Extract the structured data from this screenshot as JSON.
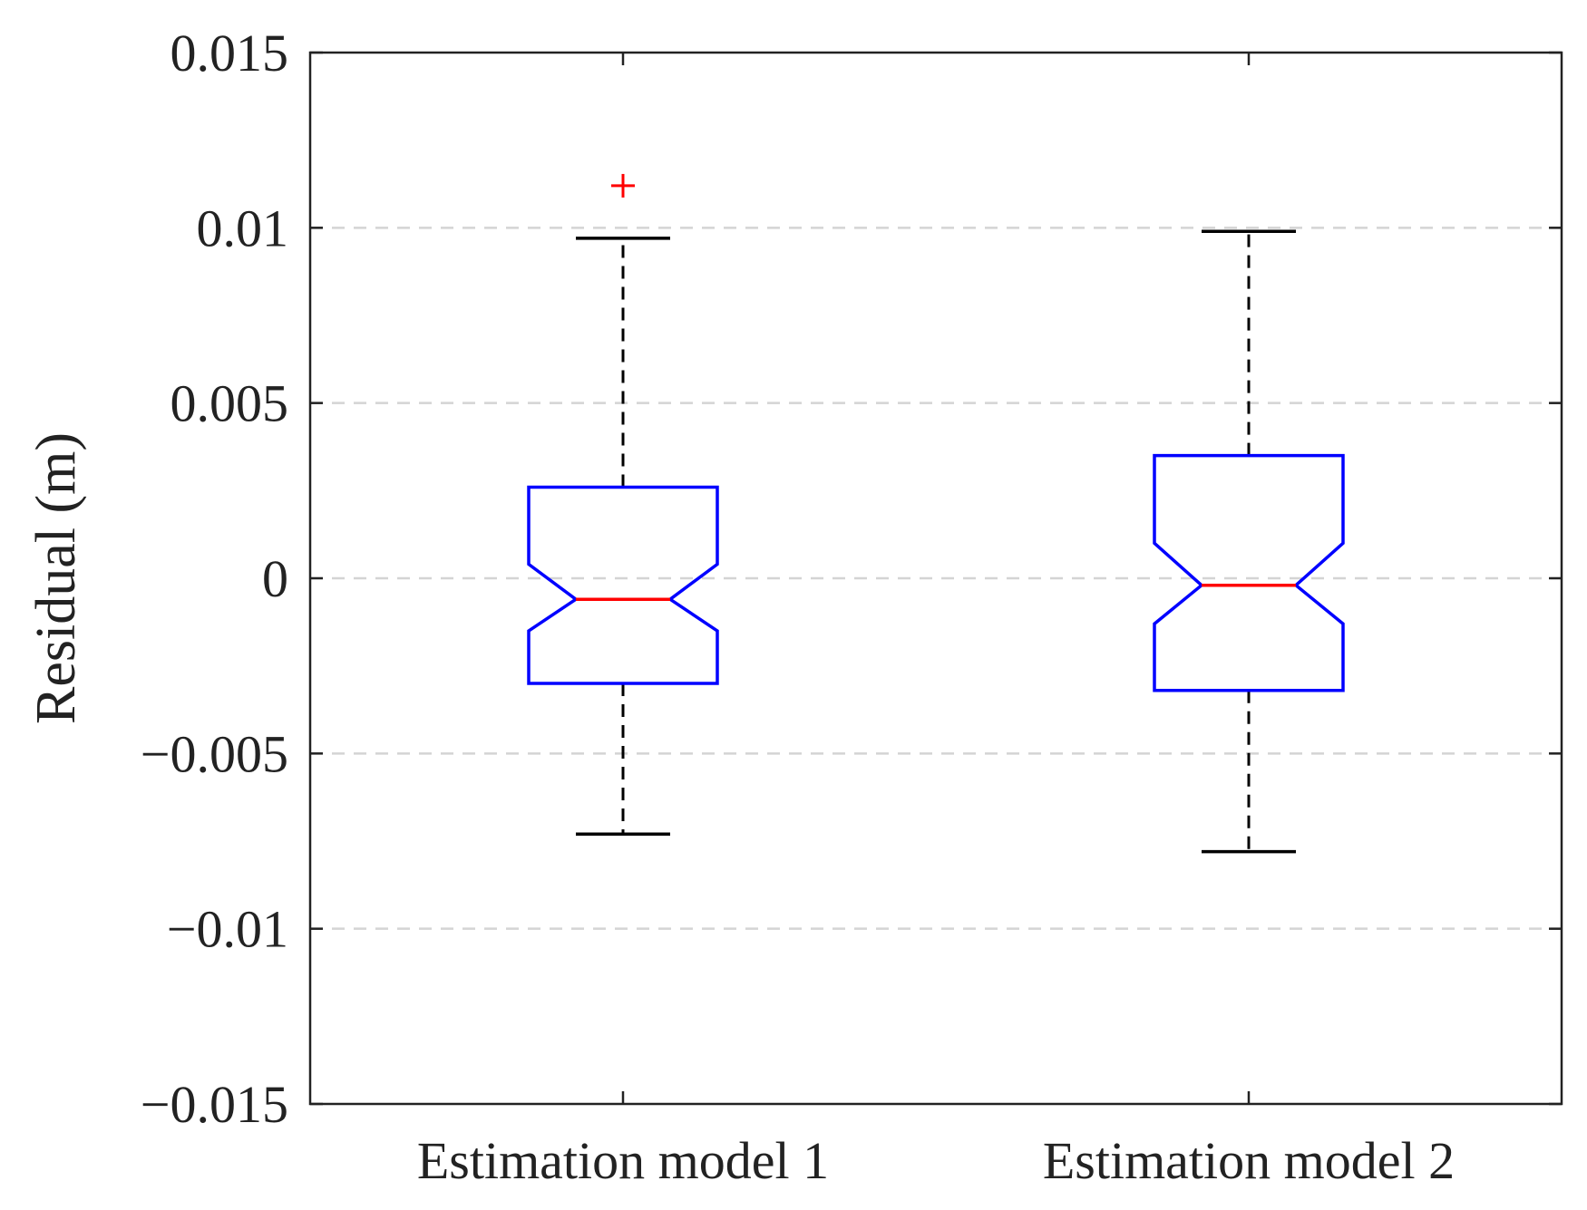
{
  "chart_data": {
    "type": "boxplot",
    "notched": true,
    "title": "",
    "xlabel": "",
    "ylabel": "Residual (m)",
    "ylim": [
      -0.015,
      0.015
    ],
    "yticks": [
      -0.015,
      -0.01,
      -0.005,
      0,
      0.005,
      0.01,
      0.015
    ],
    "ytick_labels": [
      "−0.015",
      "−0.01",
      "−0.005",
      "0",
      "0.005",
      "0.01",
      "0.015"
    ],
    "grid": "horizontal-dashed",
    "categories": [
      "Estimation model 1",
      "Estimation model 2"
    ],
    "boxes": [
      {
        "name": "Estimation model 1",
        "whisker_low": -0.0073,
        "q1": -0.003,
        "notch_low": -0.0015,
        "median": -0.0006,
        "notch_high": 0.0004,
        "q3": 0.0026,
        "whisker_high": 0.0097,
        "outliers": [
          0.0112
        ]
      },
      {
        "name": "Estimation model 2",
        "whisker_low": -0.0078,
        "q1": -0.0032,
        "notch_low": -0.0013,
        "median": -0.0002,
        "notch_high": 0.001,
        "q3": 0.0035,
        "whisker_high": 0.0099,
        "outliers": []
      }
    ],
    "colors": {
      "box": "#0000ff",
      "median": "#ff0000",
      "outlier": "#ff0000",
      "whisker": "#000000",
      "grid": "#d4d4d4",
      "axis": "#222222"
    }
  }
}
